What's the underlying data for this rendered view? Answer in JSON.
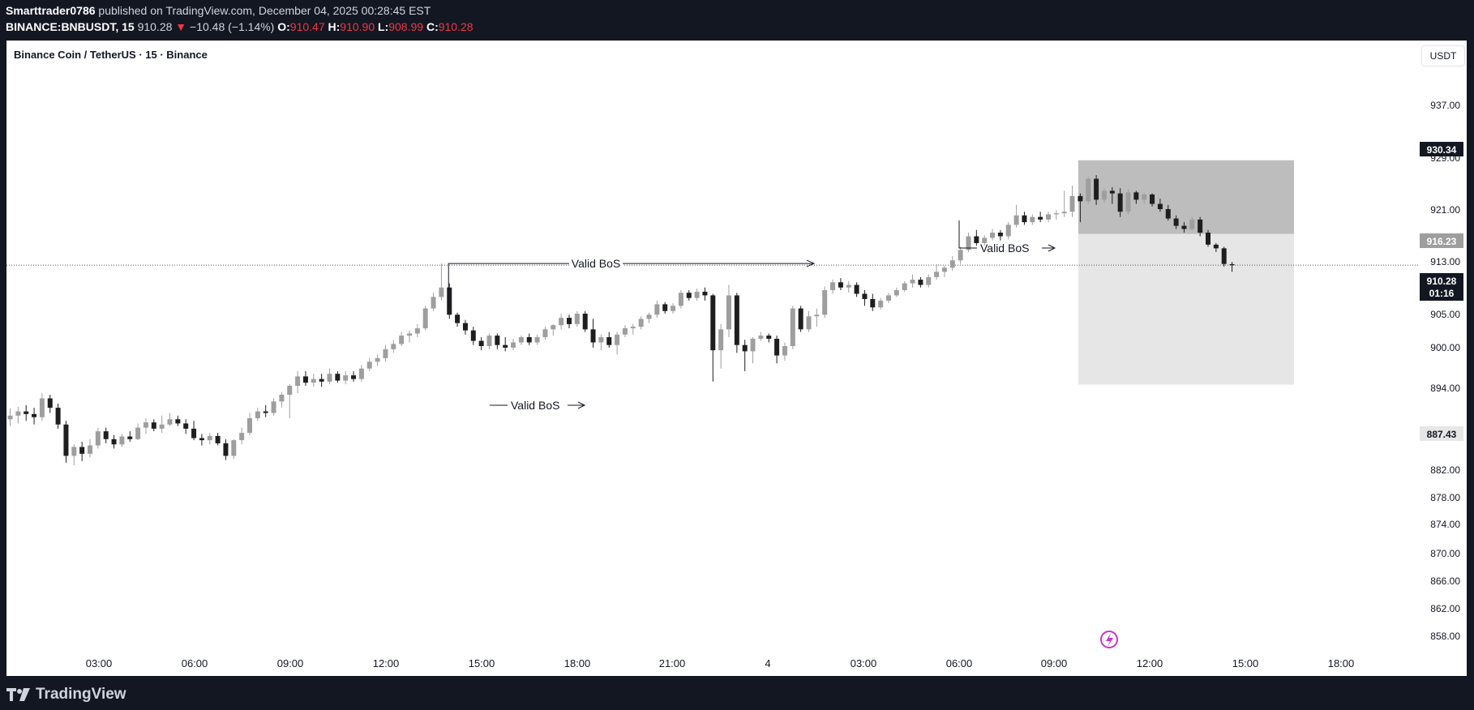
{
  "header": {
    "author": "Smarttrader0786",
    "published_text": "published on TradingView.com, December 04, 2025 00:28:45 EST",
    "symbol": "BINANCE:BNBUSDT, 15",
    "last": "910.28",
    "change_arrow": "▼",
    "change": "−10.48 (−1.14%)",
    "o_label": "O:",
    "o_value": "910.47",
    "h_label": "H:",
    "h_value": "910.90",
    "l_label": "L:",
    "l_value": "908.99",
    "c_label": "C:",
    "c_value": "910.28"
  },
  "legend": "Binance Coin / TetherUS · 15 · Binance",
  "currency": "USDT",
  "footer": {
    "brand": "TradingView"
  },
  "colors": {
    "bull": "#9e9e9e",
    "bear": "#1e1e1e",
    "background": "#ffffff",
    "frame": "#131722",
    "text": "#131722"
  },
  "chart_data": {
    "type": "candlestick",
    "symbol": "BINANCE:BNBUSDT",
    "interval": "15",
    "y_axis": {
      "ticks": [
        "937.00",
        "929.00",
        "921.00",
        "913.00",
        "905.00",
        "900.00",
        "894.00",
        "882.00",
        "878.00",
        "874.00",
        "870.00",
        "866.00",
        "862.00",
        "858.00"
      ],
      "range": [
        857,
        940
      ]
    },
    "x_axis": {
      "ticks": [
        "03:00",
        "06:00",
        "09:00",
        "12:00",
        "15:00",
        "18:00",
        "21:00",
        "4",
        "03:00",
        "06:00",
        "09:00",
        "12:00",
        "15:00",
        "18:00"
      ]
    },
    "price_labels": [
      {
        "value": "930.34",
        "style": "dark"
      },
      {
        "value": "916.23",
        "style": "grey"
      },
      {
        "value": "910.28",
        "style": "dark",
        "countdown": "01:16"
      },
      {
        "value": "887.43",
        "style": "light"
      }
    ],
    "last_price": 910.28,
    "zones": [
      {
        "name": "stop-loss-zone",
        "from": 916.23,
        "to": 930.34,
        "color": "#bdbdbd"
      },
      {
        "name": "take-profit-zone",
        "from": 887.43,
        "to": 916.23,
        "color": "#e6e6e6"
      }
    ],
    "annotations": [
      {
        "text": "Valid BoS",
        "price": 910.5,
        "start_time": "11:45",
        "end_time": "01:30"
      },
      {
        "text": "Valid BoS",
        "price": 893.0
      },
      {
        "text": "Valid BoS",
        "price": 914.8
      }
    ],
    "candles": [
      {
        "o": 880.8,
        "h": 882.9,
        "l": 879.5,
        "c": 881.5
      },
      {
        "o": 881.5,
        "h": 883.2,
        "l": 880.0,
        "c": 882.3
      },
      {
        "o": 882.3,
        "h": 883.5,
        "l": 880.5,
        "c": 881.8
      },
      {
        "o": 881.8,
        "h": 883.0,
        "l": 879.8,
        "c": 881.2
      },
      {
        "o": 881.2,
        "h": 885.8,
        "l": 880.5,
        "c": 884.8
      },
      {
        "o": 884.8,
        "h": 885.5,
        "l": 882.0,
        "c": 883.0
      },
      {
        "o": 883.0,
        "h": 883.8,
        "l": 879.0,
        "c": 879.8
      },
      {
        "o": 879.8,
        "h": 880.5,
        "l": 872.5,
        "c": 873.8
      },
      {
        "o": 873.8,
        "h": 876.0,
        "l": 872.0,
        "c": 875.5
      },
      {
        "o": 875.5,
        "h": 876.5,
        "l": 872.8,
        "c": 874.2
      },
      {
        "o": 874.2,
        "h": 877.0,
        "l": 873.5,
        "c": 875.8
      },
      {
        "o": 875.8,
        "h": 879.2,
        "l": 875.2,
        "c": 878.5
      },
      {
        "o": 878.5,
        "h": 879.2,
        "l": 876.2,
        "c": 877.0
      },
      {
        "o": 877.0,
        "h": 877.8,
        "l": 875.2,
        "c": 876.0
      },
      {
        "o": 876.0,
        "h": 878.0,
        "l": 875.5,
        "c": 877.5
      },
      {
        "o": 877.5,
        "h": 878.5,
        "l": 876.5,
        "c": 877.0
      },
      {
        "o": 877.0,
        "h": 880.0,
        "l": 876.8,
        "c": 879.2
      },
      {
        "o": 879.2,
        "h": 881.0,
        "l": 878.0,
        "c": 880.2
      },
      {
        "o": 880.2,
        "h": 880.8,
        "l": 878.5,
        "c": 879.0
      },
      {
        "o": 879.0,
        "h": 881.5,
        "l": 878.2,
        "c": 879.8
      },
      {
        "o": 879.8,
        "h": 882.0,
        "l": 879.5,
        "c": 880.8
      },
      {
        "o": 880.8,
        "h": 881.5,
        "l": 879.5,
        "c": 880.0
      },
      {
        "o": 880.0,
        "h": 880.8,
        "l": 878.0,
        "c": 879.0
      },
      {
        "o": 879.0,
        "h": 880.5,
        "l": 876.8,
        "c": 877.2
      },
      {
        "o": 877.2,
        "h": 878.0,
        "l": 875.8,
        "c": 876.8
      },
      {
        "o": 876.8,
        "h": 878.2,
        "l": 876.0,
        "c": 877.6
      },
      {
        "o": 877.6,
        "h": 878.2,
        "l": 875.8,
        "c": 876.2
      },
      {
        "o": 876.2,
        "h": 877.0,
        "l": 873.0,
        "c": 873.8
      },
      {
        "o": 873.8,
        "h": 877.0,
        "l": 873.2,
        "c": 876.8
      },
      {
        "o": 876.8,
        "h": 879.2,
        "l": 876.0,
        "c": 878.2
      },
      {
        "o": 878.2,
        "h": 882.0,
        "l": 877.8,
        "c": 881.0
      },
      {
        "o": 881.0,
        "h": 883.0,
        "l": 880.5,
        "c": 882.3
      },
      {
        "o": 882.3,
        "h": 883.5,
        "l": 881.2,
        "c": 882.0
      },
      {
        "o": 882.0,
        "h": 884.8,
        "l": 881.5,
        "c": 884.2
      },
      {
        "o": 884.2,
        "h": 886.0,
        "l": 883.0,
        "c": 885.5
      },
      {
        "o": 885.5,
        "h": 887.5,
        "l": 881.0,
        "c": 887.2
      },
      {
        "o": 887.2,
        "h": 890.0,
        "l": 885.8,
        "c": 889.0
      },
      {
        "o": 889.0,
        "h": 890.0,
        "l": 887.2,
        "c": 887.8
      },
      {
        "o": 887.8,
        "h": 889.5,
        "l": 887.0,
        "c": 888.5
      },
      {
        "o": 888.5,
        "h": 889.5,
        "l": 887.0,
        "c": 888.0
      },
      {
        "o": 888.0,
        "h": 890.5,
        "l": 887.5,
        "c": 889.5
      },
      {
        "o": 889.5,
        "h": 890.0,
        "l": 887.8,
        "c": 888.2
      },
      {
        "o": 888.2,
        "h": 890.0,
        "l": 887.5,
        "c": 889.2
      },
      {
        "o": 889.2,
        "h": 890.0,
        "l": 888.0,
        "c": 888.5
      },
      {
        "o": 888.5,
        "h": 891.2,
        "l": 888.0,
        "c": 890.5
      },
      {
        "o": 890.5,
        "h": 892.5,
        "l": 890.0,
        "c": 891.8
      },
      {
        "o": 891.8,
        "h": 893.2,
        "l": 891.0,
        "c": 892.5
      },
      {
        "o": 892.5,
        "h": 895.0,
        "l": 891.8,
        "c": 894.2
      },
      {
        "o": 894.2,
        "h": 896.0,
        "l": 893.5,
        "c": 895.2
      },
      {
        "o": 895.2,
        "h": 897.5,
        "l": 894.8,
        "c": 896.8
      },
      {
        "o": 896.8,
        "h": 897.8,
        "l": 895.5,
        "c": 897.2
      },
      {
        "o": 897.2,
        "h": 899.0,
        "l": 896.5,
        "c": 898.2
      },
      {
        "o": 898.2,
        "h": 902.5,
        "l": 897.8,
        "c": 902.0
      },
      {
        "o": 902.0,
        "h": 905.0,
        "l": 901.5,
        "c": 904.2
      },
      {
        "o": 904.2,
        "h": 910.6,
        "l": 903.5,
        "c": 906.0
      },
      {
        "o": 906.0,
        "h": 906.8,
        "l": 900.0,
        "c": 900.8
      },
      {
        "o": 900.8,
        "h": 901.2,
        "l": 898.5,
        "c": 899.2
      },
      {
        "o": 899.2,
        "h": 899.8,
        "l": 897.0,
        "c": 897.8
      },
      {
        "o": 897.8,
        "h": 898.5,
        "l": 895.0,
        "c": 895.8
      },
      {
        "o": 895.8,
        "h": 896.5,
        "l": 894.0,
        "c": 894.8
      },
      {
        "o": 894.8,
        "h": 897.2,
        "l": 894.2,
        "c": 896.8
      },
      {
        "o": 896.8,
        "h": 897.2,
        "l": 894.2,
        "c": 895.0
      },
      {
        "o": 895.0,
        "h": 896.5,
        "l": 893.8,
        "c": 894.5
      },
      {
        "o": 894.5,
        "h": 896.2,
        "l": 894.0,
        "c": 895.5
      },
      {
        "o": 895.5,
        "h": 896.8,
        "l": 895.0,
        "c": 896.5
      },
      {
        "o": 896.5,
        "h": 897.2,
        "l": 895.0,
        "c": 895.5
      },
      {
        "o": 895.5,
        "h": 897.0,
        "l": 895.0,
        "c": 896.5
      },
      {
        "o": 896.5,
        "h": 898.5,
        "l": 896.0,
        "c": 898.0
      },
      {
        "o": 898.0,
        "h": 899.0,
        "l": 896.8,
        "c": 898.8
      },
      {
        "o": 898.8,
        "h": 901.0,
        "l": 898.0,
        "c": 900.2
      },
      {
        "o": 900.2,
        "h": 900.8,
        "l": 898.2,
        "c": 899.0
      },
      {
        "o": 899.0,
        "h": 901.5,
        "l": 898.5,
        "c": 901.0
      },
      {
        "o": 901.0,
        "h": 901.5,
        "l": 897.5,
        "c": 898.0
      },
      {
        "o": 898.0,
        "h": 900.0,
        "l": 894.5,
        "c": 895.5
      },
      {
        "o": 895.5,
        "h": 897.0,
        "l": 894.0,
        "c": 896.5
      },
      {
        "o": 896.5,
        "h": 897.5,
        "l": 894.5,
        "c": 895.0
      },
      {
        "o": 895.0,
        "h": 897.5,
        "l": 893.2,
        "c": 897.0
      },
      {
        "o": 897.0,
        "h": 898.8,
        "l": 896.5,
        "c": 898.2
      },
      {
        "o": 898.2,
        "h": 899.0,
        "l": 897.0,
        "c": 898.5
      },
      {
        "o": 898.5,
        "h": 900.5,
        "l": 898.0,
        "c": 900.0
      },
      {
        "o": 900.0,
        "h": 901.2,
        "l": 899.2,
        "c": 900.8
      },
      {
        "o": 900.8,
        "h": 903.5,
        "l": 900.2,
        "c": 902.8
      },
      {
        "o": 902.8,
        "h": 903.2,
        "l": 901.0,
        "c": 901.5
      },
      {
        "o": 901.5,
        "h": 903.0,
        "l": 901.0,
        "c": 902.5
      },
      {
        "o": 902.5,
        "h": 905.5,
        "l": 902.0,
        "c": 905.0
      },
      {
        "o": 905.0,
        "h": 905.5,
        "l": 903.5,
        "c": 904.0
      },
      {
        "o": 904.0,
        "h": 905.8,
        "l": 903.5,
        "c": 905.2
      },
      {
        "o": 905.2,
        "h": 906.0,
        "l": 903.5,
        "c": 904.5
      },
      {
        "o": 904.5,
        "h": 904.8,
        "l": 888.0,
        "c": 894.0
      },
      {
        "o": 894.0,
        "h": 899.0,
        "l": 890.5,
        "c": 898.0
      },
      {
        "o": 898.0,
        "h": 906.5,
        "l": 896.5,
        "c": 904.5
      },
      {
        "o": 904.5,
        "h": 905.0,
        "l": 893.5,
        "c": 895.0
      },
      {
        "o": 895.0,
        "h": 896.0,
        "l": 890.0,
        "c": 893.8
      },
      {
        "o": 893.8,
        "h": 896.5,
        "l": 891.5,
        "c": 896.2
      },
      {
        "o": 896.2,
        "h": 897.5,
        "l": 895.8,
        "c": 896.8
      },
      {
        "o": 896.8,
        "h": 897.2,
        "l": 895.5,
        "c": 896.2
      },
      {
        "o": 896.2,
        "h": 896.8,
        "l": 891.5,
        "c": 893.0
      },
      {
        "o": 893.0,
        "h": 895.5,
        "l": 892.0,
        "c": 894.8
      },
      {
        "o": 894.8,
        "h": 902.5,
        "l": 894.2,
        "c": 902.0
      },
      {
        "o": 902.0,
        "h": 902.5,
        "l": 897.5,
        "c": 898.0
      },
      {
        "o": 898.0,
        "h": 901.5,
        "l": 897.5,
        "c": 900.5
      },
      {
        "o": 900.5,
        "h": 902.0,
        "l": 898.5,
        "c": 900.8
      },
      {
        "o": 900.8,
        "h": 906.2,
        "l": 900.2,
        "c": 905.5
      },
      {
        "o": 905.5,
        "h": 907.5,
        "l": 904.8,
        "c": 907.0
      },
      {
        "o": 907.0,
        "h": 907.8,
        "l": 905.5,
        "c": 906.0
      },
      {
        "o": 906.0,
        "h": 907.2,
        "l": 905.0,
        "c": 906.5
      },
      {
        "o": 906.5,
        "h": 907.0,
        "l": 904.2,
        "c": 904.8
      },
      {
        "o": 904.8,
        "h": 905.5,
        "l": 902.5,
        "c": 903.8
      },
      {
        "o": 903.8,
        "h": 904.8,
        "l": 901.5,
        "c": 902.2
      },
      {
        "o": 902.2,
        "h": 904.0,
        "l": 901.8,
        "c": 903.5
      },
      {
        "o": 903.5,
        "h": 905.0,
        "l": 903.0,
        "c": 904.5
      },
      {
        "o": 904.5,
        "h": 906.0,
        "l": 904.2,
        "c": 905.5
      },
      {
        "o": 905.5,
        "h": 907.2,
        "l": 905.2,
        "c": 906.8
      },
      {
        "o": 906.8,
        "h": 908.5,
        "l": 906.0,
        "c": 907.5
      },
      {
        "o": 907.5,
        "h": 908.0,
        "l": 906.0,
        "c": 906.5
      },
      {
        "o": 906.5,
        "h": 908.5,
        "l": 906.0,
        "c": 908.0
      },
      {
        "o": 908.0,
        "h": 910.5,
        "l": 907.5,
        "c": 909.0
      },
      {
        "o": 909.0,
        "h": 910.2,
        "l": 908.0,
        "c": 909.8
      },
      {
        "o": 909.8,
        "h": 912.0,
        "l": 909.2,
        "c": 911.2
      },
      {
        "o": 911.2,
        "h": 913.8,
        "l": 910.5,
        "c": 913.2
      },
      {
        "o": 913.2,
        "h": 916.5,
        "l": 912.8,
        "c": 915.8
      },
      {
        "o": 915.8,
        "h": 917.0,
        "l": 914.0,
        "c": 914.5
      },
      {
        "o": 914.5,
        "h": 916.0,
        "l": 914.0,
        "c": 915.5
      },
      {
        "o": 915.5,
        "h": 917.2,
        "l": 915.0,
        "c": 916.5
      },
      {
        "o": 916.5,
        "h": 917.0,
        "l": 915.0,
        "c": 915.8
      },
      {
        "o": 915.8,
        "h": 918.5,
        "l": 915.2,
        "c": 918.0
      },
      {
        "o": 918.0,
        "h": 921.8,
        "l": 917.5,
        "c": 919.8
      },
      {
        "o": 919.8,
        "h": 920.5,
        "l": 918.0,
        "c": 918.5
      },
      {
        "o": 918.5,
        "h": 920.0,
        "l": 918.0,
        "c": 919.5
      },
      {
        "o": 919.5,
        "h": 920.5,
        "l": 918.5,
        "c": 919.0
      },
      {
        "o": 919.0,
        "h": 920.5,
        "l": 918.5,
        "c": 920.0
      },
      {
        "o": 920.0,
        "h": 920.8,
        "l": 919.0,
        "c": 920.2
      },
      {
        "o": 920.2,
        "h": 924.5,
        "l": 919.5,
        "c": 920.5
      },
      {
        "o": 920.5,
        "h": 925.5,
        "l": 919.5,
        "c": 923.5
      },
      {
        "o": 923.5,
        "h": 924.0,
        "l": 918.5,
        "c": 922.5
      },
      {
        "o": 922.5,
        "h": 927.2,
        "l": 922.0,
        "c": 926.8
      },
      {
        "o": 926.8,
        "h": 927.5,
        "l": 921.8,
        "c": 922.8
      },
      {
        "o": 922.8,
        "h": 925.0,
        "l": 922.2,
        "c": 924.5
      },
      {
        "o": 924.5,
        "h": 925.2,
        "l": 922.0,
        "c": 924.0
      },
      {
        "o": 924.0,
        "h": 925.0,
        "l": 919.5,
        "c": 920.5
      },
      {
        "o": 920.5,
        "h": 924.8,
        "l": 920.0,
        "c": 924.2
      },
      {
        "o": 924.2,
        "h": 924.5,
        "l": 922.0,
        "c": 922.8
      },
      {
        "o": 922.8,
        "h": 924.2,
        "l": 922.0,
        "c": 923.8
      },
      {
        "o": 923.8,
        "h": 924.0,
        "l": 921.5,
        "c": 922.0
      },
      {
        "o": 922.0,
        "h": 923.0,
        "l": 920.5,
        "c": 921.0
      },
      {
        "o": 921.0,
        "h": 921.8,
        "l": 918.8,
        "c": 919.2
      },
      {
        "o": 919.2,
        "h": 919.8,
        "l": 917.2,
        "c": 917.8
      },
      {
        "o": 917.8,
        "h": 918.5,
        "l": 916.5,
        "c": 917.2
      },
      {
        "o": 917.2,
        "h": 919.5,
        "l": 916.8,
        "c": 919.0
      },
      {
        "o": 919.0,
        "h": 919.5,
        "l": 915.8,
        "c": 916.5
      },
      {
        "o": 916.5,
        "h": 917.0,
        "l": 913.8,
        "c": 914.2
      },
      {
        "o": 914.2,
        "h": 914.5,
        "l": 912.8,
        "c": 913.5
      },
      {
        "o": 913.5,
        "h": 913.8,
        "l": 910.0,
        "c": 910.5
      },
      {
        "o": 910.47,
        "h": 910.9,
        "l": 908.99,
        "c": 910.28
      }
    ]
  }
}
